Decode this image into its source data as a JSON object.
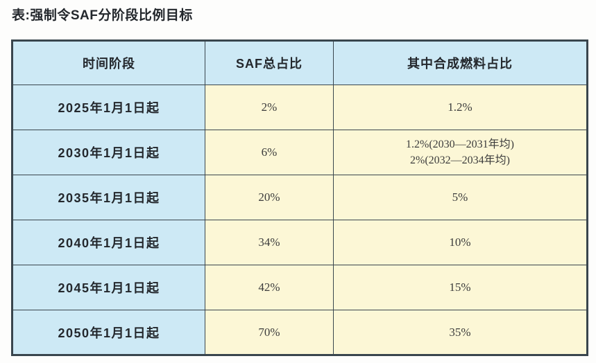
{
  "page": {
    "title": "表:强制令SAF分阶段比例目标"
  },
  "colors": {
    "header_and_period_bg": "#cde9f5",
    "value_bg": "#fcf7d6",
    "border": "#39454d",
    "title_text": "#23272c",
    "value_text": "#3c3c3c"
  },
  "table": {
    "columns": [
      {
        "label": "时间阶段"
      },
      {
        "label": "SAF总占比"
      },
      {
        "label": "其中合成燃料占比"
      }
    ],
    "rows": [
      {
        "period": "2025年1月1日起",
        "saf_total": "2%",
        "synthetic": [
          "1.2%"
        ]
      },
      {
        "period": "2030年1月1日起",
        "saf_total": "6%",
        "synthetic": [
          "1.2%(2030—2031年均)",
          "2%(2032—2034年均)"
        ]
      },
      {
        "period": "2035年1月1日起",
        "saf_total": "20%",
        "synthetic": [
          "5%"
        ]
      },
      {
        "period": "2040年1月1日起",
        "saf_total": "34%",
        "synthetic": [
          "10%"
        ]
      },
      {
        "period": "2045年1月1日起",
        "saf_total": "42%",
        "synthetic": [
          "15%"
        ]
      },
      {
        "period": "2050年1月1日起",
        "saf_total": "70%",
        "synthetic": [
          "35%"
        ]
      }
    ]
  }
}
